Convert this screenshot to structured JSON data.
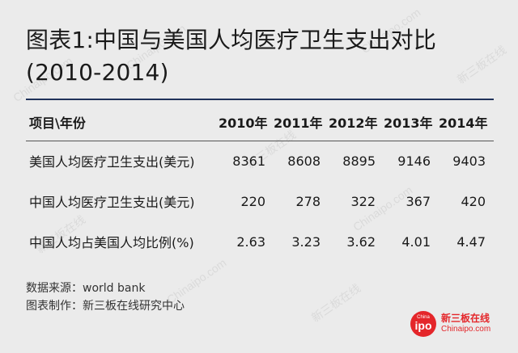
{
  "title": {
    "line1": "图表1:中国与美国人均医疗卫生支出对比",
    "line2": "(2010-2014)"
  },
  "table": {
    "headers": [
      "项目\\年份",
      "2010年",
      "2011年",
      "2012年",
      "2013年",
      "2014年"
    ],
    "rows": [
      [
        "美国人均医疗卫生支出(美元)",
        "8361",
        "8608",
        "8895",
        "9146",
        "9403"
      ],
      [
        "中国人均医疗卫生支出(美元)",
        "220",
        "278",
        "322",
        "367",
        "420"
      ],
      [
        "中国人均占美国人均比例(%)",
        "2.63",
        "3.23",
        "3.62",
        "4.01",
        "4.47"
      ]
    ]
  },
  "footer": {
    "source": "数据来源：world bank",
    "producer": "图表制作：新三板在线研究中心"
  },
  "logo": {
    "badge_top": "China",
    "badge_main": "ipo",
    "name_cn": "新三板在线",
    "name_en": "Chinaipo.com"
  },
  "watermark": {
    "text_en": "Chinaipo.com",
    "text_cn": "新三板在线"
  },
  "colors": {
    "background": "#ebebeb",
    "title_rule": "#20325a",
    "brand_red": "#e4262a"
  }
}
